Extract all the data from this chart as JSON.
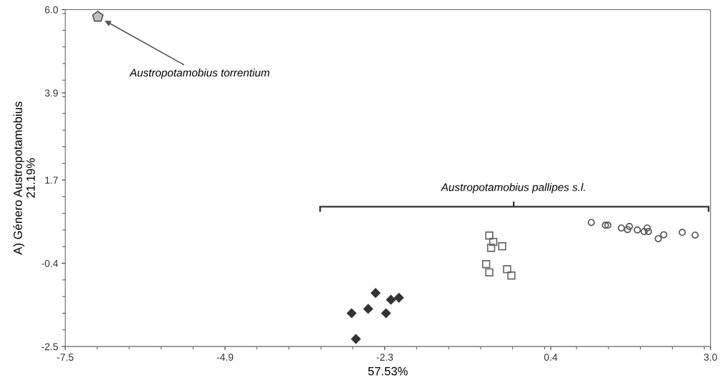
{
  "chart_data": {
    "type": "scatter",
    "xlabel": "57.53%",
    "ylabel": "A) Género Austropotamobius\n21.19%",
    "xlim": [
      -7.5,
      3.0
    ],
    "xticks": [
      -7.5,
      -4.9,
      -2.3,
      0.4,
      {
        "value": 3.0,
        "label": "3.0"
      }
    ],
    "ylim": [
      -2.5,
      6.0
    ],
    "yticks": [
      -2.5,
      -0.4,
      1.7,
      3.9,
      {
        "value": 6.0,
        "label": "6.0"
      }
    ],
    "grid": false,
    "annotations": [
      "Austropotamobius torrentium",
      "Austropotamobius pallipes s.l."
    ],
    "series": [
      {
        "color": "#333333",
        "marker": "diamond",
        "x": [
          -2.84,
          -2.77,
          -2.57,
          -2.45,
          -2.28,
          -2.2,
          -2.07
        ],
        "values": [
          -1.66,
          -2.31,
          -1.55,
          -1.15,
          -1.66,
          -1.32,
          -1.27
        ]
      },
      {
        "color": "#666666",
        "marker": "square",
        "x": [
          -0.6,
          -0.535,
          -0.57,
          -0.39,
          -0.65,
          -0.6,
          -0.31,
          -0.24
        ],
        "values": [
          0.3,
          0.14,
          -0.01,
          0.03,
          -0.42,
          -0.63,
          -0.55,
          -0.71
        ]
      },
      {
        "color": "#555555",
        "marker": "circle",
        "x": [
          1.06,
          1.29,
          1.33,
          1.55,
          1.65,
          1.68,
          1.81,
          1.92,
          1.97,
          1.99,
          2.15,
          2.24,
          2.54,
          2.75
        ],
        "values": [
          0.63,
          0.56,
          0.56,
          0.49,
          0.45,
          0.53,
          0.44,
          0.4,
          0.49,
          0.4,
          0.22,
          0.32,
          0.38,
          0.31
        ]
      },
      {
        "color": "#c0c0c0",
        "x": [
          -6.97
        ],
        "values": [
          5.82
        ]
      }
    ]
  }
}
